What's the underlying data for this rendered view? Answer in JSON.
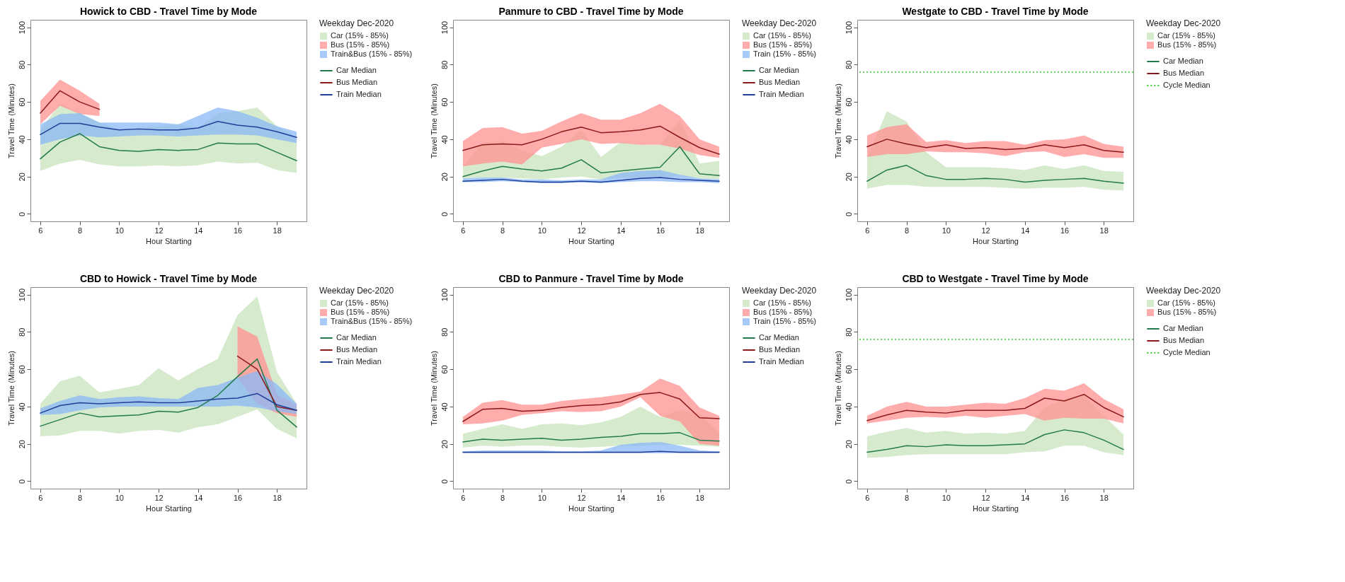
{
  "chart_data": [
    {
      "type": "line",
      "title": "Howick to CBD - Travel Time by Mode",
      "xlabel": "Hour Starting",
      "ylabel": "Travel Time (Minutes)",
      "legend_title": "Weekday Dec-2020",
      "legend": "right",
      "x": [
        6,
        7,
        8,
        9,
        10,
        11,
        12,
        13,
        14,
        15,
        16,
        17,
        18,
        19
      ],
      "xlim": [
        5.5,
        19.5
      ],
      "xticks": [
        6,
        8,
        10,
        12,
        14,
        16,
        18
      ],
      "ylim": [
        -4,
        104
      ],
      "yticks": [
        0,
        20,
        40,
        60,
        80,
        100
      ],
      "series": [
        {
          "type": "area",
          "name": "Car (15% - 85%)",
          "color": "#c8e3be",
          "values": [
            null,
            null,
            null,
            null,
            null,
            null,
            null,
            null,
            null,
            null,
            null,
            null,
            null,
            null
          ],
          "lower": [
            23,
            27,
            29,
            26.5,
            25.5,
            25.5,
            26,
            25.5,
            26,
            28,
            27,
            27.5,
            23.5,
            22
          ],
          "upper": [
            45,
            59,
            54,
            49,
            45,
            46,
            47,
            48,
            46,
            54,
            55,
            57,
            47,
            41
          ]
        },
        {
          "type": "area",
          "name": "Bus (15% - 85%)",
          "color": "#ff9090",
          "values": [
            null,
            null,
            null,
            null,
            null,
            null,
            null,
            null,
            null,
            null,
            null,
            null,
            null,
            null
          ],
          "lower": [
            48,
            58,
            53.5,
            52.5,
            null,
            null,
            null,
            null,
            null,
            null,
            null,
            null,
            null,
            null
          ],
          "upper": [
            60.5,
            72,
            66,
            59,
            null,
            null,
            null,
            null,
            null,
            null,
            null,
            null,
            null,
            null
          ]
        },
        {
          "type": "area",
          "name": "Train&Bus (15% - 85%)",
          "color": "#8ab8f5",
          "values": [
            null,
            null,
            null,
            null,
            null,
            null,
            null,
            null,
            null,
            null,
            null,
            null,
            null,
            null
          ],
          "lower": [
            37,
            40,
            42,
            41,
            41.5,
            42,
            42,
            41.5,
            42,
            42.5,
            42.5,
            42,
            40,
            38
          ],
          "upper": [
            48,
            53.5,
            54,
            49,
            49,
            49,
            49,
            48,
            52.5,
            57,
            55,
            51.5,
            47,
            44
          ]
        },
        {
          "type": "line",
          "name": "Car Median",
          "color": "#237a4b",
          "values": [
            29.5,
            38.5,
            43,
            36,
            34,
            33.5,
            34.5,
            34,
            34.5,
            38,
            37.5,
            37.5,
            33,
            28.5
          ]
        },
        {
          "type": "line",
          "name": "Bus Median",
          "color": "#8b1a1a",
          "values": [
            54,
            66,
            60,
            56,
            null,
            null,
            null,
            null,
            null,
            null,
            null,
            null,
            null,
            null
          ]
        },
        {
          "type": "line",
          "name": "Train Median",
          "color": "#1f3f99",
          "values": [
            42.5,
            48.5,
            48.5,
            46.5,
            45,
            45.5,
            45,
            45,
            46,
            49.5,
            47.5,
            46.5,
            44,
            41
          ]
        }
      ]
    },
    {
      "type": "line",
      "title": "Panmure to CBD - Travel Time by Mode",
      "xlabel": "Hour Starting",
      "ylabel": "Travel Time (Minutes)",
      "legend_title": "Weekday Dec-2020",
      "legend": "right",
      "x": [
        6,
        7,
        8,
        9,
        10,
        11,
        12,
        13,
        14,
        15,
        16,
        17,
        18,
        19
      ],
      "xlim": [
        5.5,
        19.5
      ],
      "xticks": [
        6,
        8,
        10,
        12,
        14,
        16,
        18
      ],
      "ylim": [
        -4,
        104
      ],
      "yticks": [
        0,
        20,
        40,
        60,
        80,
        100
      ],
      "series": [
        {
          "type": "area",
          "name": "Car (15% - 85%)",
          "color": "#c8e3be",
          "values": [
            null,
            null,
            null,
            null,
            null,
            null,
            null,
            null,
            null,
            null,
            null,
            null,
            null,
            null
          ],
          "lower": [
            19,
            19.5,
            19.5,
            19,
            18.5,
            19.5,
            20,
            18.5,
            19.5,
            19.5,
            19.5,
            20.5,
            19,
            18.5
          ],
          "upper": [
            25.5,
            38,
            39,
            34,
            31,
            36,
            45,
            30.5,
            38.5,
            37,
            37,
            50.5,
            27,
            28.5
          ]
        },
        {
          "type": "area",
          "name": "Bus (15% - 85%)",
          "color": "#ff9090",
          "values": [
            null,
            null,
            null,
            null,
            null,
            null,
            null,
            null,
            null,
            null,
            null,
            null,
            null,
            null
          ],
          "lower": [
            25.5,
            27,
            28,
            26.5,
            35.5,
            37.5,
            40,
            37.5,
            38,
            37,
            37,
            35,
            31.5,
            30
          ],
          "upper": [
            39,
            46,
            46.5,
            43,
            44.5,
            49.5,
            54,
            50.5,
            50.5,
            54,
            59,
            52.5,
            40,
            36
          ]
        },
        {
          "type": "area",
          "name": "Train (15% - 85%)",
          "color": "#8ab8f5",
          "values": [
            null,
            null,
            null,
            null,
            null,
            null,
            null,
            null,
            null,
            null,
            null,
            null,
            null,
            null
          ],
          "lower": [
            17,
            17,
            17.5,
            17,
            16.5,
            16.5,
            17,
            16.5,
            17,
            17.5,
            17.5,
            17,
            17,
            16.5
          ],
          "upper": [
            19,
            19.5,
            19.5,
            18.5,
            18.5,
            18,
            18.5,
            18.5,
            22,
            23,
            23.5,
            21,
            19,
            18.5
          ]
        },
        {
          "type": "line",
          "name": "Car Median",
          "color": "#237a4b",
          "values": [
            20,
            23,
            25.5,
            24,
            23,
            24.5,
            29,
            22,
            23,
            24,
            25,
            36,
            21.5,
            20.5
          ]
        },
        {
          "type": "line",
          "name": "Bus Median",
          "color": "#8b1a1a",
          "values": [
            34,
            37,
            37.5,
            37,
            40,
            44,
            46.5,
            43.5,
            44,
            45,
            47,
            41,
            35.5,
            32
          ]
        },
        {
          "type": "line",
          "name": "Train Median",
          "color": "#1f3f99",
          "values": [
            17.5,
            18,
            18.5,
            17.5,
            17,
            17,
            17.5,
            17,
            18,
            19,
            19.5,
            18.5,
            18,
            17.5
          ]
        }
      ]
    },
    {
      "type": "line",
      "title": "Westgate to CBD - Travel Time by Mode",
      "xlabel": "Hour Starting",
      "ylabel": "Travel Time (Minutes)",
      "legend_title": "Weekday Dec-2020",
      "legend": "right",
      "x": [
        6,
        7,
        8,
        9,
        10,
        11,
        12,
        13,
        14,
        15,
        16,
        17,
        18,
        19
      ],
      "xlim": [
        5.5,
        19.5
      ],
      "xticks": [
        6,
        8,
        10,
        12,
        14,
        16,
        18
      ],
      "ylim": [
        -4,
        104
      ],
      "yticks": [
        0,
        20,
        40,
        60,
        80,
        100
      ],
      "series": [
        {
          "type": "area",
          "name": "Car (15% - 85%)",
          "color": "#c8e3be",
          "values": [
            null,
            null,
            null,
            null,
            null,
            null,
            null,
            null,
            null,
            null,
            null,
            null,
            null,
            null
          ],
          "lower": [
            13.5,
            15.5,
            15.5,
            14.5,
            14.5,
            14.5,
            14.5,
            14,
            13.5,
            14,
            14,
            14.5,
            13,
            12.5
          ],
          "upper": [
            30,
            55,
            49.5,
            33,
            25,
            25,
            25,
            24.5,
            23.5,
            26,
            24,
            26,
            23,
            22.5
          ]
        },
        {
          "type": "area",
          "name": "Bus (15% - 85%)",
          "color": "#ff9090",
          "values": [
            null,
            null,
            null,
            null,
            null,
            null,
            null,
            null,
            null,
            null,
            null,
            null,
            null,
            null
          ],
          "lower": [
            30.5,
            32,
            32,
            33.5,
            33,
            33,
            32.5,
            31,
            33,
            33.5,
            30.5,
            32,
            30,
            30
          ],
          "upper": [
            42,
            46.5,
            48,
            38.5,
            39.5,
            38,
            39,
            39,
            37,
            39.5,
            40,
            42,
            37.5,
            36
          ]
        },
        {
          "type": "line",
          "name": "Car Median",
          "color": "#237a4b",
          "values": [
            17.5,
            23.5,
            26,
            20.5,
            18.5,
            18.5,
            19,
            18.5,
            17,
            18,
            18.5,
            19,
            17.5,
            16.5
          ]
        },
        {
          "type": "line",
          "name": "Bus Median",
          "color": "#8b1a1a",
          "values": [
            36,
            40,
            37.5,
            35.5,
            37,
            35,
            35.5,
            34.5,
            35,
            37,
            35.5,
            37,
            34,
            33
          ]
        }
      ],
      "ref_lines": [
        {
          "axis": "y",
          "value": 76,
          "label": "Cycle Median",
          "color": "#33cc33",
          "line_style": "dotted"
        }
      ]
    },
    {
      "type": "line",
      "title": "CBD to Howick - Travel Time by Mode",
      "xlabel": "Hour Starting",
      "ylabel": "Travel Time (Minutes)",
      "legend_title": "Weekday Dec-2020",
      "legend": "right",
      "x": [
        6,
        7,
        8,
        9,
        10,
        11,
        12,
        13,
        14,
        15,
        16,
        17,
        18,
        19
      ],
      "xlim": [
        5.5,
        19.5
      ],
      "xticks": [
        6,
        8,
        10,
        12,
        14,
        16,
        18
      ],
      "ylim": [
        -4,
        104
      ],
      "yticks": [
        0,
        20,
        40,
        60,
        80,
        100
      ],
      "series": [
        {
          "type": "area",
          "name": "Car (15% - 85%)",
          "color": "#c8e3be",
          "values": [
            null,
            null,
            null,
            null,
            null,
            null,
            null,
            null,
            null,
            null,
            null,
            null,
            null,
            null
          ],
          "lower": [
            24,
            24.5,
            27,
            27,
            25.5,
            27,
            27.5,
            26,
            29,
            30.5,
            34.5,
            38.5,
            28,
            23
          ],
          "upper": [
            41.5,
            53.5,
            56.5,
            47.5,
            49.5,
            51.5,
            60.5,
            54,
            60,
            65.5,
            89,
            99,
            58.5,
            41.5
          ]
        },
        {
          "type": "area",
          "name": "Bus (15% - 85%)",
          "color": "#ff9090",
          "values": [
            null,
            null,
            null,
            null,
            null,
            null,
            null,
            null,
            null,
            null,
            null,
            null,
            null,
            null
          ],
          "lower": [
            null,
            null,
            null,
            null,
            null,
            null,
            null,
            null,
            null,
            null,
            55.5,
            41.5,
            36.5,
            34.5
          ],
          "upper": [
            null,
            null,
            null,
            null,
            null,
            null,
            null,
            null,
            null,
            null,
            83,
            77.5,
            46.5,
            41
          ]
        },
        {
          "type": "area",
          "name": "Train&Bus (15% - 85%)",
          "color": "#8ab8f5",
          "values": [
            null,
            null,
            null,
            null,
            null,
            null,
            null,
            null,
            null,
            null,
            null,
            null,
            null,
            null
          ],
          "lower": [
            35.5,
            36,
            38,
            39.5,
            40,
            40,
            40,
            40,
            40,
            40,
            40.5,
            39.5,
            37.5,
            36
          ],
          "upper": [
            39,
            43,
            46,
            44,
            45,
            45.5,
            44.5,
            44,
            50,
            51.5,
            55.5,
            59,
            52,
            41.5
          ]
        },
        {
          "type": "line",
          "name": "Car Median",
          "color": "#237a4b",
          "values": [
            29.5,
            33,
            36.5,
            34.5,
            35,
            35.5,
            37.5,
            37,
            39.5,
            46,
            56,
            65.5,
            38,
            29
          ]
        },
        {
          "type": "line",
          "name": "Bus Median",
          "color": "#8b1a1a",
          "values": [
            null,
            null,
            null,
            null,
            null,
            null,
            null,
            null,
            null,
            null,
            67,
            60,
            40,
            38
          ]
        },
        {
          "type": "line",
          "name": "Train Median",
          "color": "#1f3f99",
          "values": [
            36.5,
            40.5,
            42,
            41.5,
            42,
            42.5,
            42,
            42,
            43,
            44,
            44.5,
            47,
            41,
            38
          ]
        }
      ]
    },
    {
      "type": "line",
      "title": "CBD to Panmure - Travel Time by Mode",
      "xlabel": "Hour Starting",
      "ylabel": "Travel Time (Minutes)",
      "legend_title": "Weekday Dec-2020",
      "legend": "right",
      "x": [
        6,
        7,
        8,
        9,
        10,
        11,
        12,
        13,
        14,
        15,
        16,
        17,
        18,
        19
      ],
      "xlim": [
        5.5,
        19.5
      ],
      "xticks": [
        6,
        8,
        10,
        12,
        14,
        16,
        18
      ],
      "ylim": [
        -4,
        104
      ],
      "yticks": [
        0,
        20,
        40,
        60,
        80,
        100
      ],
      "series": [
        {
          "type": "area",
          "name": "Car (15% - 85%)",
          "color": "#c8e3be",
          "values": [
            null,
            null,
            null,
            null,
            null,
            null,
            null,
            null,
            null,
            null,
            null,
            null,
            null,
            null
          ],
          "lower": [
            18,
            19,
            18.5,
            19,
            19,
            18.5,
            18,
            18.5,
            19,
            19,
            19.5,
            19.5,
            19,
            18.5
          ],
          "upper": [
            25.5,
            28,
            30.5,
            28,
            30.5,
            31,
            30,
            31.5,
            34.5,
            40,
            34.5,
            38,
            36.5,
            26
          ]
        },
        {
          "type": "area",
          "name": "Bus (15% - 85%)",
          "color": "#ff9090",
          "values": [
            null,
            null,
            null,
            null,
            null,
            null,
            null,
            null,
            null,
            null,
            null,
            null,
            null,
            null
          ],
          "lower": [
            30.5,
            31,
            32.5,
            35.5,
            36.5,
            37.5,
            37,
            37.5,
            40,
            45,
            35,
            32,
            20,
            19
          ],
          "upper": [
            34.5,
            42,
            43.5,
            41,
            41,
            43,
            44,
            45,
            46.5,
            48,
            55,
            51,
            39.5,
            35
          ]
        },
        {
          "type": "area",
          "name": "Train (15% - 85%)",
          "color": "#8ab8f5",
          "values": [
            null,
            null,
            null,
            null,
            null,
            null,
            null,
            null,
            null,
            null,
            null,
            null,
            null,
            null
          ],
          "lower": [
            15,
            15,
            15,
            15,
            15,
            15,
            15,
            15,
            15,
            15,
            15,
            15,
            15,
            15
          ],
          "upper": [
            16,
            16.5,
            16.5,
            16.5,
            16.5,
            16,
            16,
            16.5,
            19.5,
            20.5,
            21,
            19,
            16.5,
            16
          ]
        },
        {
          "type": "line",
          "name": "Car Median",
          "color": "#237a4b",
          "values": [
            21,
            22.5,
            22,
            22.5,
            23,
            22,
            22.5,
            23.5,
            24,
            25.5,
            25.5,
            26,
            22,
            21.5
          ]
        },
        {
          "type": "line",
          "name": "Bus Median",
          "color": "#8b1a1a",
          "values": [
            32,
            38.5,
            39,
            37.5,
            38,
            39.5,
            40.5,
            41,
            42.5,
            46.5,
            47.5,
            44,
            34,
            33.5
          ]
        },
        {
          "type": "line",
          "name": "Train Median",
          "color": "#1f3f99",
          "values": [
            15.5,
            15.5,
            15.5,
            15.5,
            15.5,
            15.5,
            15.5,
            15.5,
            15.5,
            15.5,
            16,
            15.5,
            15.5,
            15.5
          ]
        }
      ]
    },
    {
      "type": "line",
      "title": "CBD to Westgate - Travel Time by Mode",
      "xlabel": "Hour Starting",
      "ylabel": "Travel Time (Minutes)",
      "legend_title": "Weekday Dec-2020",
      "legend": "right",
      "x": [
        6,
        7,
        8,
        9,
        10,
        11,
        12,
        13,
        14,
        15,
        16,
        17,
        18,
        19
      ],
      "xlim": [
        5.5,
        19.5
      ],
      "xticks": [
        6,
        8,
        10,
        12,
        14,
        16,
        18
      ],
      "ylim": [
        -4,
        104
      ],
      "yticks": [
        0,
        20,
        40,
        60,
        80,
        100
      ],
      "series": [
        {
          "type": "area",
          "name": "Car (15% - 85%)",
          "color": "#c8e3be",
          "values": [
            null,
            null,
            null,
            null,
            null,
            null,
            null,
            null,
            null,
            null,
            null,
            null,
            null,
            null
          ],
          "lower": [
            12.5,
            13,
            14,
            14.5,
            14.5,
            14.5,
            14.5,
            14.5,
            15.5,
            16,
            19,
            19,
            15.5,
            14
          ],
          "upper": [
            24,
            26.5,
            28.5,
            26,
            27,
            25.5,
            26,
            25.5,
            27,
            39.5,
            44,
            46,
            35,
            25
          ]
        },
        {
          "type": "area",
          "name": "Bus (15% - 85%)",
          "color": "#ff9090",
          "values": [
            null,
            null,
            null,
            null,
            null,
            null,
            null,
            null,
            null,
            null,
            null,
            null,
            null,
            null
          ],
          "lower": [
            31,
            32.5,
            34,
            34.5,
            34,
            35,
            34,
            35,
            36,
            32.5,
            34,
            33.5,
            33.5,
            31
          ],
          "upper": [
            35,
            40,
            42.5,
            40,
            40,
            41,
            42,
            41.5,
            44.5,
            49.5,
            48.5,
            52.5,
            44,
            38.5
          ]
        },
        {
          "type": "line",
          "name": "Car Median",
          "color": "#237a4b",
          "values": [
            15.5,
            17,
            19,
            18.5,
            19.5,
            19,
            19,
            19.5,
            20,
            25,
            27.5,
            26,
            22,
            17
          ]
        },
        {
          "type": "line",
          "name": "Bus Median",
          "color": "#8b1a1a",
          "values": [
            32.5,
            35.5,
            38,
            37,
            36.5,
            38,
            38,
            38,
            39,
            44.5,
            43,
            46.5,
            39.5,
            34.5
          ]
        }
      ],
      "ref_lines": [
        {
          "axis": "y",
          "value": 76,
          "label": "Cycle Median",
          "color": "#33cc33",
          "line_style": "dotted"
        }
      ]
    }
  ]
}
